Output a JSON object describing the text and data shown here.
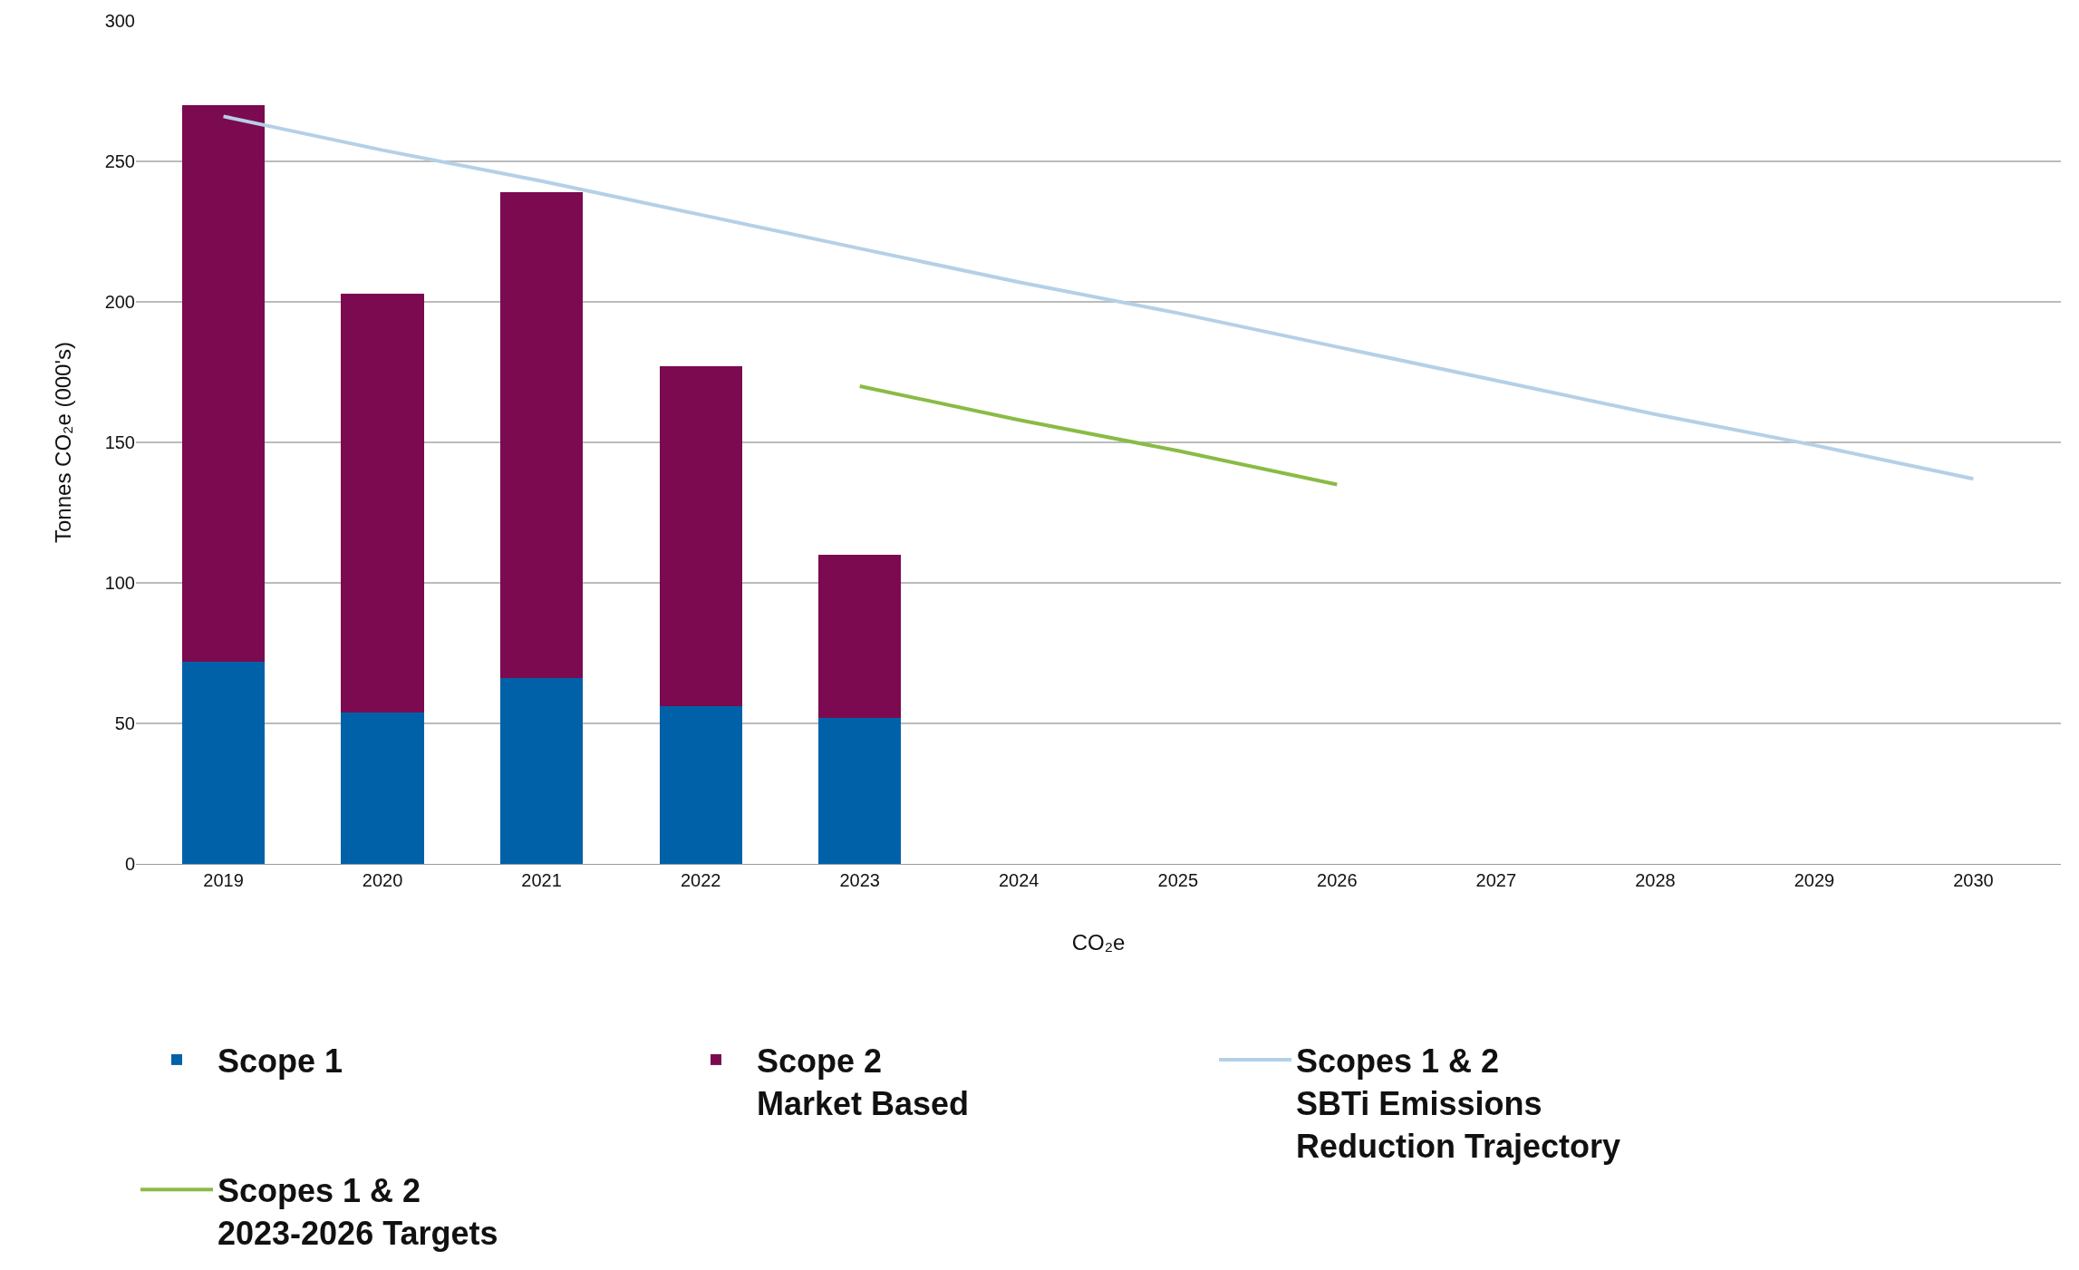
{
  "chart_data": {
    "type": "bar",
    "stacked": true,
    "xlabel": "CO₂e",
    "ylabel": "Tonnes CO₂e (000's)",
    "categories": [
      "2019",
      "2020",
      "2021",
      "2022",
      "2023",
      "2024",
      "2025",
      "2026",
      "2027",
      "2028",
      "2029",
      "2030"
    ],
    "series": [
      {
        "name": "Scope 1",
        "color": "#0061a8",
        "values": [
          72,
          54,
          66,
          56,
          52,
          null,
          null,
          null,
          null,
          null,
          null,
          null
        ]
      },
      {
        "name": "Scope 2\nMarket Based",
        "color": "#7b0a50",
        "values": [
          198,
          149,
          173,
          121,
          58,
          null,
          null,
          null,
          null,
          null,
          null,
          null
        ]
      },
      {
        "name": "Scopes 1 & 2\nSBTi Emissions\nReduction Trajectory",
        "type": "line",
        "color": "#b5d0e6",
        "values": [
          266,
          254,
          243,
          231,
          219,
          207,
          196,
          184,
          172,
          160,
          149,
          137
        ]
      },
      {
        "name": "Scopes 1 & 2\n2023-2026 Targets",
        "type": "line",
        "color": "#8abb45",
        "values": [
          null,
          null,
          null,
          null,
          170,
          158,
          147,
          135,
          null,
          null,
          null,
          null
        ]
      }
    ],
    "ylim": [
      0,
      300
    ],
    "yticks": [
      0,
      50,
      100,
      150,
      200,
      250,
      300
    ],
    "grid": "y",
    "legend": "bottom",
    "marker": "none"
  }
}
